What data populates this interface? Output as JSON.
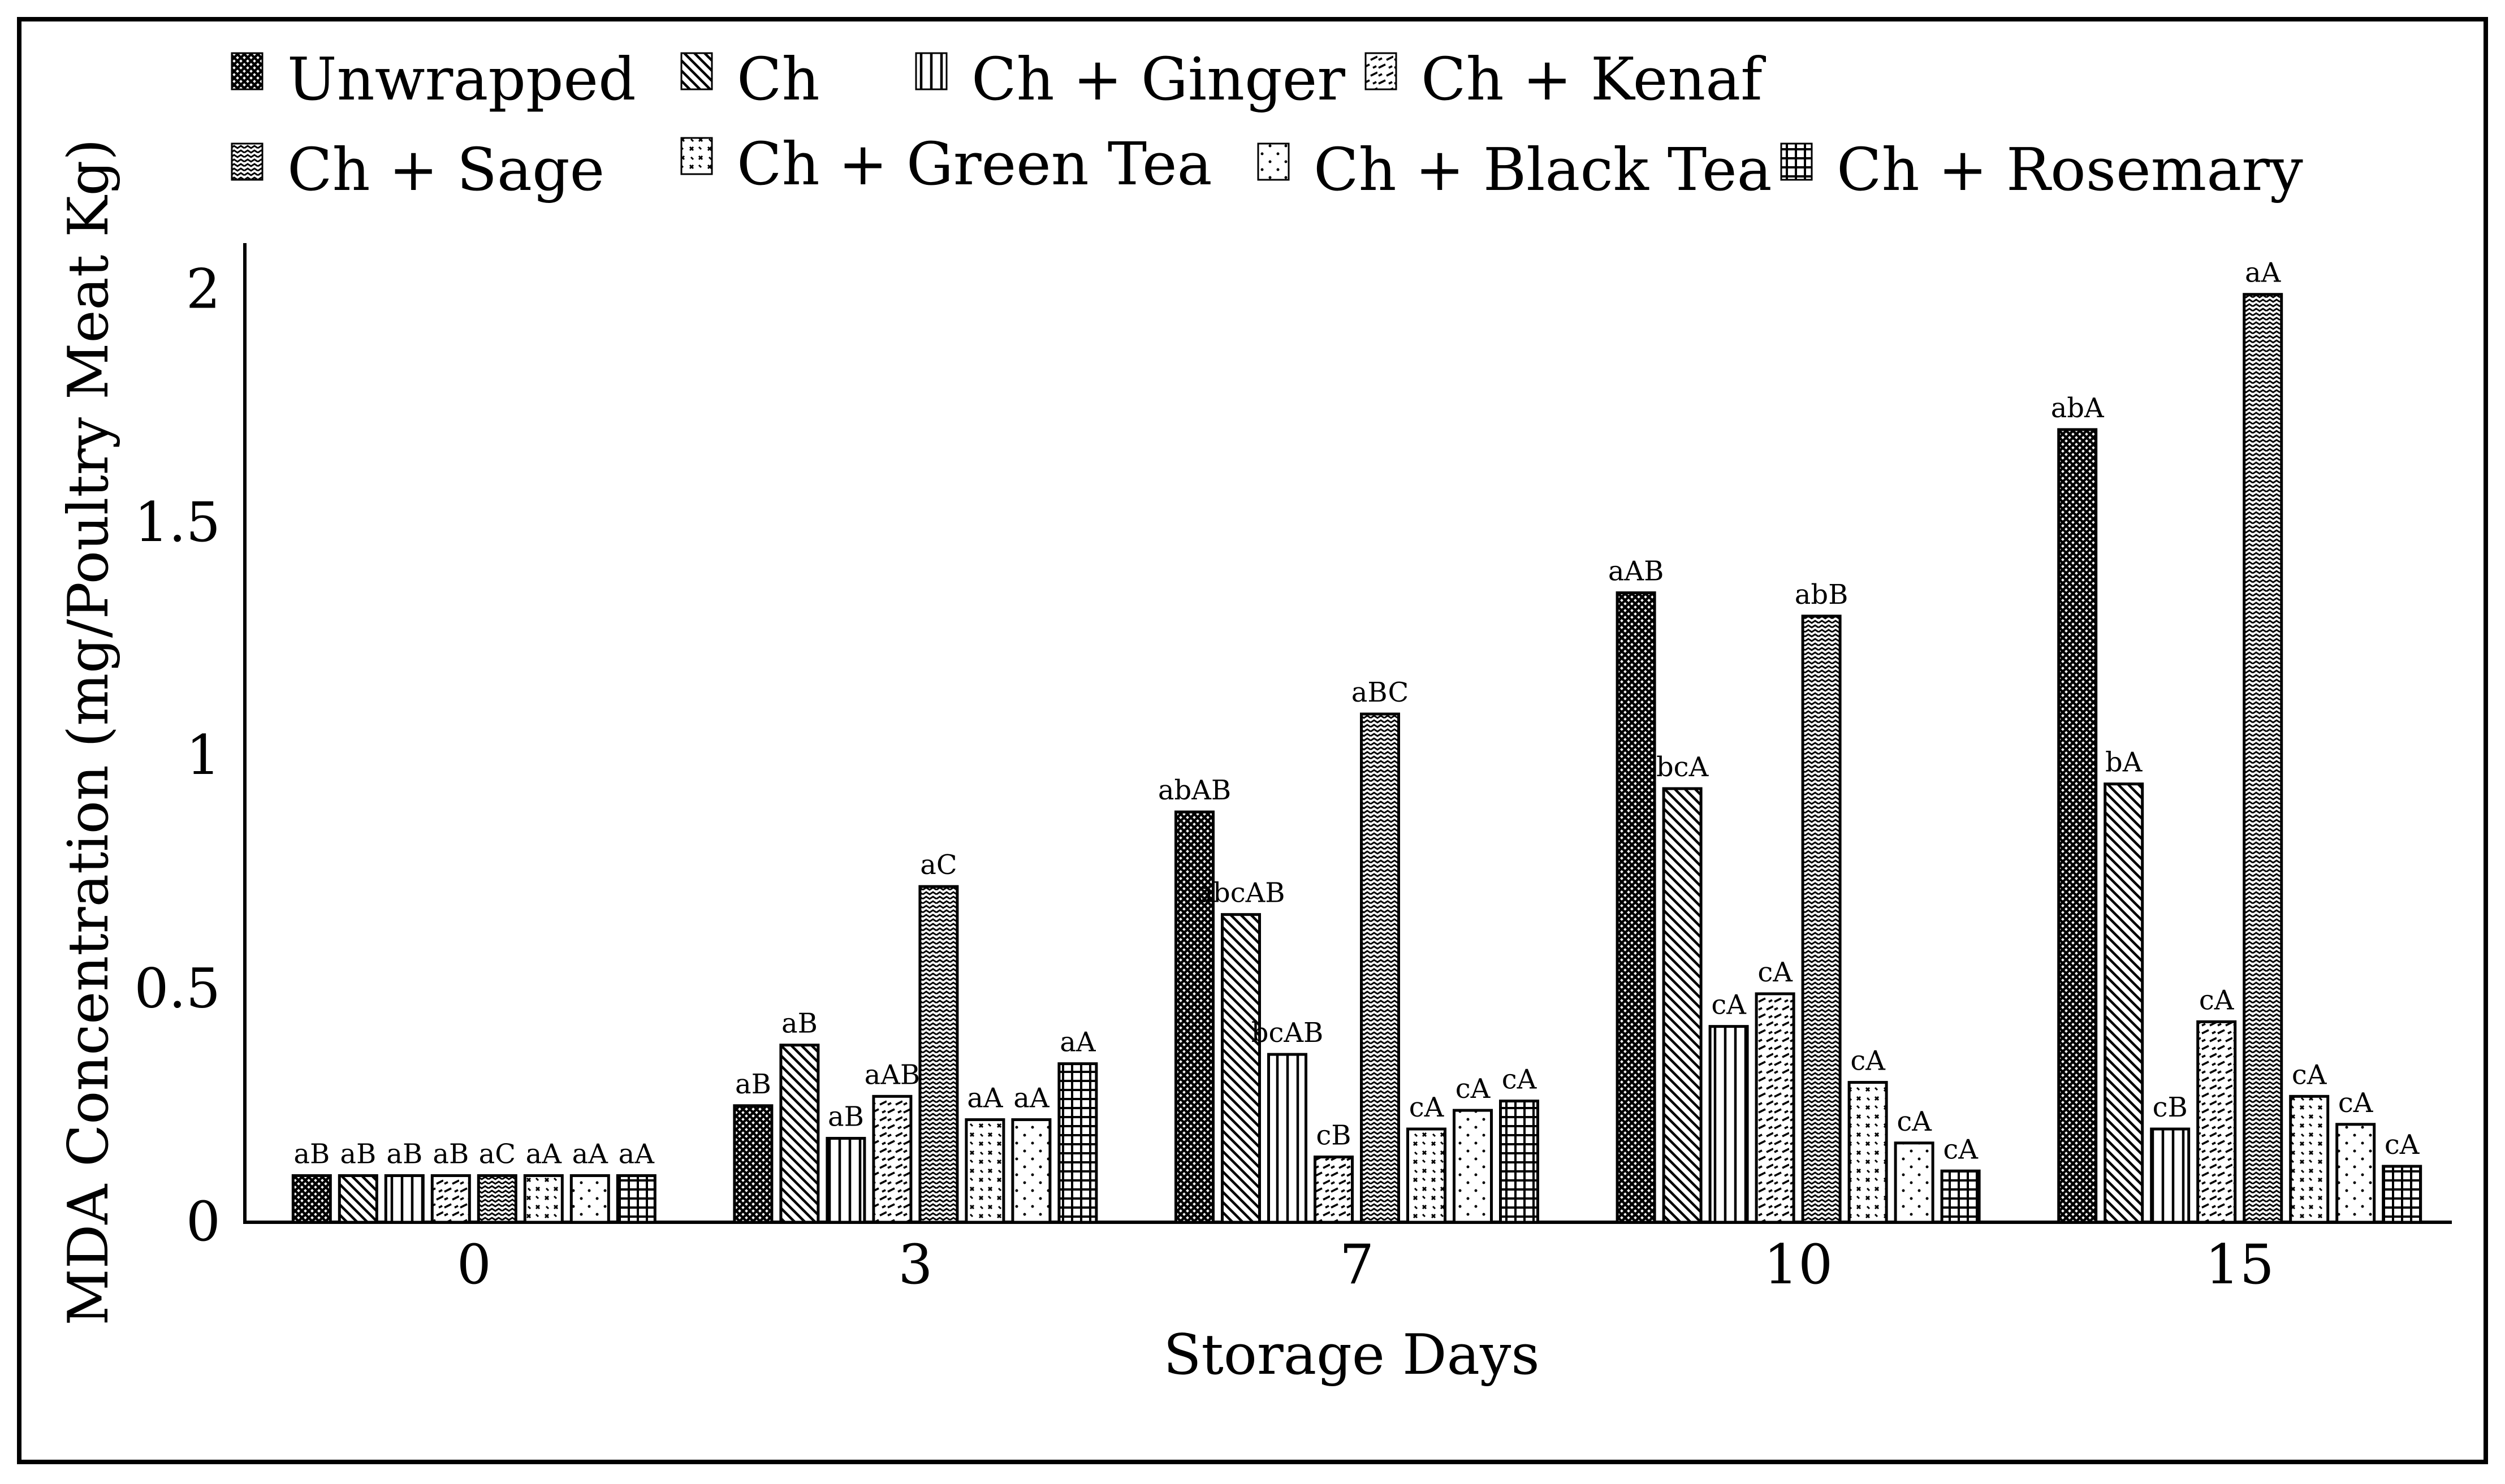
{
  "chart_data": {
    "type": "bar",
    "title": "",
    "xlabel": "Storage Days",
    "ylabel": "MDA Concentration (mg/Poultry Meat Kg)",
    "ylim": [
      0,
      2.1
    ],
    "y_ticks": [
      "0",
      "0.5",
      "1",
      "1.5",
      "2"
    ],
    "grid": false,
    "legend_position": "top",
    "categories": [
      "0",
      "3",
      "7",
      "10",
      "15"
    ],
    "series": [
      {
        "name": "Unwrapped",
        "pattern": "crosshatch-dense",
        "values": [
          0.1,
          0.25,
          0.88,
          1.35,
          1.7
        ],
        "labels": [
          "aB",
          "aB",
          "abAB",
          "aAB",
          "abA"
        ]
      },
      {
        "name": "Ch",
        "pattern": "diagonal",
        "values": [
          0.1,
          0.38,
          0.66,
          0.93,
          0.94
        ],
        "labels": [
          "aB",
          "aB",
          "abcAB",
          "bcA",
          "bA"
        ]
      },
      {
        "name": "Ch + Ginger",
        "pattern": "vertical",
        "values": [
          0.1,
          0.18,
          0.36,
          0.42,
          0.2
        ],
        "labels": [
          "aB",
          "aB",
          "bcAB",
          "cA",
          "cB"
        ]
      },
      {
        "name": "Ch + Kenaf",
        "pattern": "dashed-diagonal",
        "values": [
          0.1,
          0.27,
          0.14,
          0.49,
          0.43
        ],
        "labels": [
          "aB",
          "aAB",
          "cB",
          "cA",
          "cA"
        ]
      },
      {
        "name": "Ch + Sage",
        "pattern": "zigzag",
        "values": [
          0.1,
          0.72,
          1.09,
          1.3,
          1.99
        ],
        "labels": [
          "aC",
          "aC",
          "aBC",
          "abB",
          "aA"
        ]
      },
      {
        "name": "Ch + Green Tea",
        "pattern": "weave",
        "values": [
          0.1,
          0.22,
          0.2,
          0.3,
          0.27
        ],
        "labels": [
          "aA",
          "aA",
          "cA",
          "cA",
          "cA"
        ]
      },
      {
        "name": "Ch + Black Tea",
        "pattern": "dots",
        "values": [
          0.1,
          0.22,
          0.24,
          0.17,
          0.21
        ],
        "labels": [
          "aA",
          "aA",
          "cA",
          "cA",
          "cA"
        ]
      },
      {
        "name": "Ch + Rosemary",
        "pattern": "grid",
        "values": [
          0.1,
          0.34,
          0.26,
          0.11,
          0.12
        ],
        "labels": [
          "aA",
          "aA",
          "cA",
          "cA",
          "cA"
        ]
      }
    ]
  }
}
